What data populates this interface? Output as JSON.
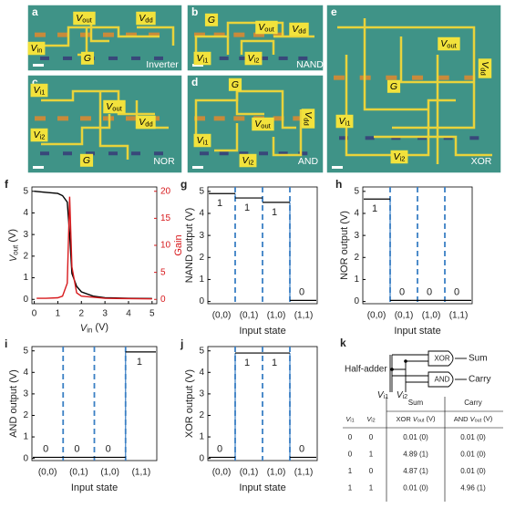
{
  "micrographs": [
    {
      "letter": "a",
      "caption": "Inverter",
      "labels": [
        {
          "main": "V",
          "sub": "out"
        },
        {
          "main": "V",
          "sub": "dd"
        },
        {
          "main": "V",
          "sub": "in"
        },
        {
          "main": "G"
        }
      ]
    },
    {
      "letter": "b",
      "caption": "NAND",
      "labels": [
        {
          "main": "G"
        },
        {
          "main": "V",
          "sub": "out"
        },
        {
          "main": "V",
          "sub": "dd"
        },
        {
          "main": "V",
          "sub": "i1"
        },
        {
          "main": "V",
          "sub": "i2"
        }
      ]
    },
    {
      "letter": "c",
      "caption": "NOR",
      "labels": [
        {
          "main": "V",
          "sub": "i1"
        },
        {
          "main": "V",
          "sub": "out"
        },
        {
          "main": "V",
          "sub": "dd"
        },
        {
          "main": "V",
          "sub": "i2"
        },
        {
          "main": "G"
        }
      ]
    },
    {
      "letter": "d",
      "caption": "AND",
      "labels": [
        {
          "main": "G"
        },
        {
          "main": "V",
          "sub": "dd"
        },
        {
          "main": "V",
          "sub": "out"
        },
        {
          "main": "V",
          "sub": "i1"
        },
        {
          "main": "V",
          "sub": "i2"
        }
      ]
    },
    {
      "letter": "e",
      "caption": "XOR",
      "labels": [
        {
          "main": "V",
          "sub": "out"
        },
        {
          "main": "G"
        },
        {
          "main": "V",
          "sub": "dd"
        },
        {
          "main": "V",
          "sub": "i1"
        },
        {
          "main": "V",
          "sub": "i2"
        }
      ]
    }
  ],
  "chart_data": [
    {
      "type": "line",
      "letter": "f",
      "xlabel": {
        "main": "V",
        "sub": "in",
        "tail": " (V)"
      },
      "ylabel": {
        "main": "V",
        "sub": "out",
        "tail": " (V)"
      },
      "y2label": "Gain",
      "xlim": [
        -0.1,
        5.2
      ],
      "xticks": [
        0,
        1,
        2,
        3,
        4,
        5
      ],
      "ylim": [
        -0.2,
        5.2
      ],
      "yticks": [
        0,
        1,
        2,
        3,
        4,
        5
      ],
      "y2lim": [
        -0.8,
        20.8
      ],
      "y2ticks": [
        0,
        5,
        10,
        15,
        20
      ],
      "y2color": "#d7191c",
      "series": [
        {
          "color": "#000000",
          "x": [
            0,
            0.5,
            1,
            1.2,
            1.4,
            1.5,
            1.6,
            1.8,
            2,
            2.5,
            3,
            4,
            5
          ],
          "values": [
            5.0,
            4.95,
            4.9,
            4.8,
            4.5,
            3.0,
            1.2,
            0.6,
            0.35,
            0.15,
            0.08,
            0.05,
            0.04
          ]
        },
        {
          "color": "#d7191c",
          "axis": "y2",
          "x": [
            0.1,
            0.5,
            1,
            1.2,
            1.4,
            1.5,
            1.6,
            1.8,
            2,
            3,
            5
          ],
          "values": [
            0.2,
            0.2,
            0.3,
            0.6,
            3,
            19,
            6,
            1.2,
            0.6,
            0.2,
            0.1
          ]
        }
      ]
    },
    {
      "type": "step",
      "letter": "g",
      "ylabel": "NAND output (V)",
      "xlabel": "Input state",
      "categories": [
        "(0,0)",
        "(0,1)",
        "(1,0)",
        "(1,1)"
      ],
      "values": [
        4.9,
        4.7,
        4.5,
        0.05
      ],
      "logic_levels": [
        "1",
        "1",
        "1",
        "0"
      ],
      "ylim": [
        -0.1,
        5.2
      ],
      "yticks": [
        0,
        1,
        2,
        3,
        4,
        5
      ],
      "color": "#000000",
      "divider_color": "#3a7fc4"
    },
    {
      "type": "step",
      "letter": "h",
      "ylabel": "NOR output (V)",
      "xlabel": "Input state",
      "categories": [
        "(0,0)",
        "(0,1)",
        "(1,0)",
        "(1,1)"
      ],
      "values": [
        4.65,
        0.05,
        0.05,
        0.05
      ],
      "logic_levels": [
        "1",
        "0",
        "0",
        "0"
      ],
      "ylim": [
        -0.1,
        5.2
      ],
      "yticks": [
        0,
        1,
        2,
        3,
        4,
        5
      ],
      "color": "#000000",
      "divider_color": "#3a7fc4"
    },
    {
      "type": "step",
      "letter": "i",
      "ylabel": "AND output (V)",
      "xlabel": "Input state",
      "categories": [
        "(0,0)",
        "(0,1)",
        "(1,0)",
        "(1,1)"
      ],
      "values": [
        0.05,
        0.05,
        0.05,
        4.95
      ],
      "logic_levels": [
        "0",
        "0",
        "0",
        "1"
      ],
      "ylim": [
        -0.1,
        5.2
      ],
      "yticks": [
        0,
        1,
        2,
        3,
        4,
        5
      ],
      "color": "#000000",
      "divider_color": "#3a7fc4"
    },
    {
      "type": "step",
      "letter": "j",
      "ylabel": "XOR output (V)",
      "xlabel": "Input state",
      "categories": [
        "(0,0)",
        "(0,1)",
        "(1,0)",
        "(1,1)"
      ],
      "values": [
        0.05,
        4.9,
        4.9,
        0.05
      ],
      "logic_levels": [
        "0",
        "1",
        "1",
        "0"
      ],
      "ylim": [
        -0.1,
        5.2
      ],
      "yticks": [
        0,
        1,
        2,
        3,
        4,
        5
      ],
      "color": "#000000",
      "divider_color": "#3a7fc4"
    }
  ],
  "half_adder": {
    "letter": "k",
    "label": "Half-adder",
    "gates": [
      "XOR",
      "AND"
    ],
    "outputs": [
      "Sum",
      "Carry"
    ],
    "inputs": [
      {
        "main": "V",
        "sub": "i1"
      },
      {
        "main": "V",
        "sub": "i2"
      }
    ]
  },
  "truth_table": {
    "groups": [
      "Sum",
      "Carry"
    ],
    "header": [
      {
        "main": "V",
        "sub": "i1"
      },
      {
        "main": "V",
        "sub": "i2"
      },
      {
        "pre": "XOR ",
        "main": "V",
        "sub": "out",
        "tail": " (V)"
      },
      {
        "pre": "AND ",
        "main": "V",
        "sub": "out",
        "tail": " (V)"
      }
    ],
    "rows": [
      [
        "0",
        "0",
        "0.01 (0)",
        "0.01 (0)"
      ],
      [
        "0",
        "1",
        "4.89 (1)",
        "0.01 (0)"
      ],
      [
        "1",
        "0",
        "4.87 (1)",
        "0.01 (0)"
      ],
      [
        "1",
        "1",
        "0.01 (0)",
        "4.96 (1)"
      ]
    ]
  }
}
